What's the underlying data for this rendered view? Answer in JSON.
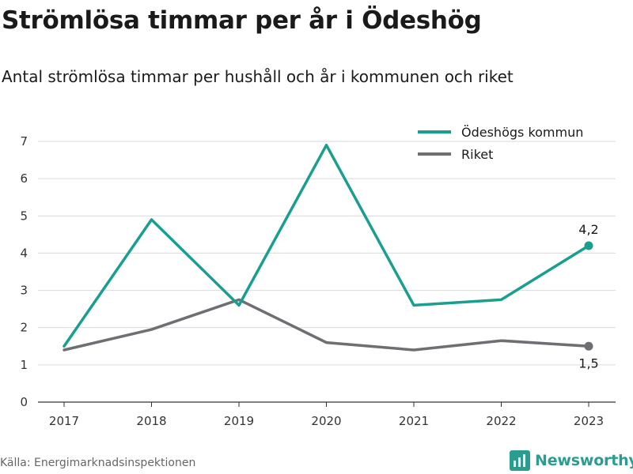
{
  "header": {
    "title": "Strömlösa timmar per år i Ödeshög",
    "subtitle": "Antal strömlösa timmar per hushåll och år i kommunen och riket"
  },
  "footer": {
    "source": "Källa: Energimarknadsinspektionen",
    "brand": "Newsworthy"
  },
  "chart_data": {
    "type": "line",
    "x": [
      "2017",
      "2018",
      "2019",
      "2020",
      "2021",
      "2022",
      "2023"
    ],
    "ylim": [
      0,
      7
    ],
    "yticks": [
      0,
      1,
      2,
      3,
      4,
      5,
      6,
      7
    ],
    "grid": true,
    "legend_position": "top-right",
    "series": [
      {
        "name": "Ödeshögs kommun",
        "color": "#1a9e8f",
        "values": [
          1.5,
          4.9,
          2.6,
          6.9,
          2.6,
          2.75,
          4.2
        ],
        "end_label": "4,2"
      },
      {
        "name": "Riket",
        "color": "#6e6e73",
        "values": [
          1.4,
          1.95,
          2.75,
          1.6,
          1.4,
          1.65,
          1.5
        ],
        "end_label": "1,5"
      }
    ]
  }
}
